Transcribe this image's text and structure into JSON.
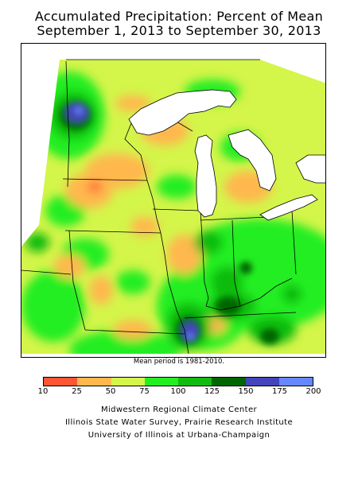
{
  "title": {
    "line1": "Accumulated Precipitation: Percent of Mean",
    "line2": "September 1, 2013 to September 30, 2013"
  },
  "mean_note": "Mean period is 1981-2010.",
  "legend": {
    "colors": [
      "#ff5533",
      "#ffb84d",
      "#d4f54a",
      "#22ee22",
      "#11bb11",
      "#006600",
      "#4444bb",
      "#6688ff"
    ],
    "ticks": [
      "10",
      "25",
      "50",
      "75",
      "100",
      "125",
      "150",
      "175",
      "200"
    ]
  },
  "credits": {
    "line1": "Midwestern Regional Climate Center",
    "line2": "Illinois State Water Survey, Prairie Research Institute",
    "line3": "University of Illinois at Urbana-Champaign"
  }
}
